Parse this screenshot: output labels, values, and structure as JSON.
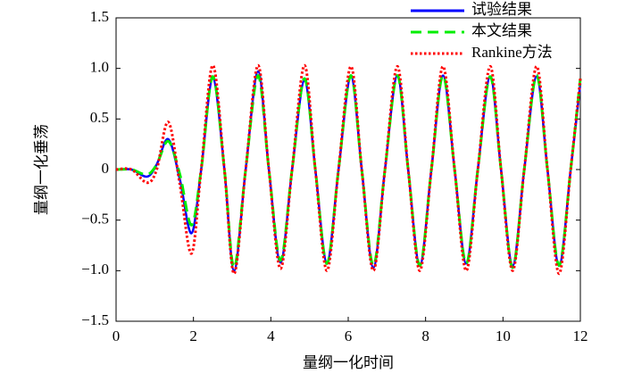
{
  "chart_data": {
    "type": "line",
    "xlabel": "量纲一化时间",
    "ylabel": "量纲一化垂荡",
    "x": [
      0,
      0.4,
      0.8,
      1.05,
      1.35,
      1.65,
      1.95,
      2.2,
      2.5,
      2.8,
      3.05,
      3.35,
      3.67,
      3.95,
      4.25,
      4.55,
      4.87,
      5.15,
      5.45,
      5.75,
      6.07,
      6.35,
      6.65,
      6.95,
      7.27,
      7.55,
      7.85,
      8.15,
      8.45,
      8.75,
      9.05,
      9.35,
      9.67,
      9.95,
      10.25,
      10.55,
      10.87,
      11.15,
      11.45,
      11.75,
      12
    ],
    "series": [
      {
        "name": "试验结果",
        "color": "#0000ff",
        "dash": "solid",
        "values": [
          0,
          0,
          -0.07,
          0.05,
          0.3,
          -0.1,
          -0.63,
          0,
          0.9,
          0,
          -1.0,
          0,
          0.97,
          0,
          -0.92,
          0,
          0.88,
          0,
          -0.92,
          0,
          0.92,
          0,
          -0.97,
          0,
          0.93,
          0,
          -0.95,
          0,
          0.93,
          0,
          -0.93,
          0,
          0.92,
          0,
          -0.95,
          0,
          0.92,
          0,
          -0.95,
          0,
          0.85
        ]
      },
      {
        "name": "本文结果",
        "color": "#00ee00",
        "dash": "dashed",
        "values": [
          0,
          0,
          -0.05,
          0.05,
          0.28,
          -0.05,
          -0.55,
          0,
          0.92,
          0,
          -0.97,
          0,
          0.93,
          0,
          -0.9,
          0,
          0.9,
          0,
          -0.93,
          0,
          0.93,
          0,
          -0.95,
          0,
          0.93,
          0,
          -0.95,
          0,
          0.93,
          0,
          -0.93,
          0,
          0.92,
          0,
          -0.97,
          0,
          0.93,
          0,
          -0.95,
          0,
          0.9
        ]
      },
      {
        "name": "Rankine方法",
        "color": "#ff0000",
        "dash": "dotted",
        "values": [
          0,
          0,
          -0.13,
          0,
          0.47,
          -0.15,
          -0.83,
          0,
          1.03,
          0,
          -1.03,
          0,
          1.03,
          0,
          -0.98,
          0,
          1.03,
          0,
          -1.0,
          0,
          1.02,
          0,
          -1.0,
          0,
          1.02,
          0,
          -1.0,
          0,
          1.02,
          0,
          -1.0,
          0,
          1.02,
          0,
          -1.0,
          0,
          1.02,
          0,
          -1.03,
          0,
          0.9
        ]
      }
    ],
    "xlim": [
      0,
      12
    ],
    "xticks": [
      0,
      2,
      4,
      6,
      8,
      10,
      12
    ],
    "ylim": [
      -1.5,
      1.5
    ],
    "yticks": [
      {
        "value": -1.5,
        "label": "−1.5"
      },
      {
        "value": -1.0,
        "label": "−1.0"
      },
      {
        "value": -0.5,
        "label": "−0.5"
      },
      0,
      {
        "value": 0.5,
        "label": "0.5"
      },
      {
        "value": 1.0,
        "label": "1.0"
      },
      {
        "value": 1.5,
        "label": "1.5"
      }
    ],
    "legend": "upper-right"
  }
}
